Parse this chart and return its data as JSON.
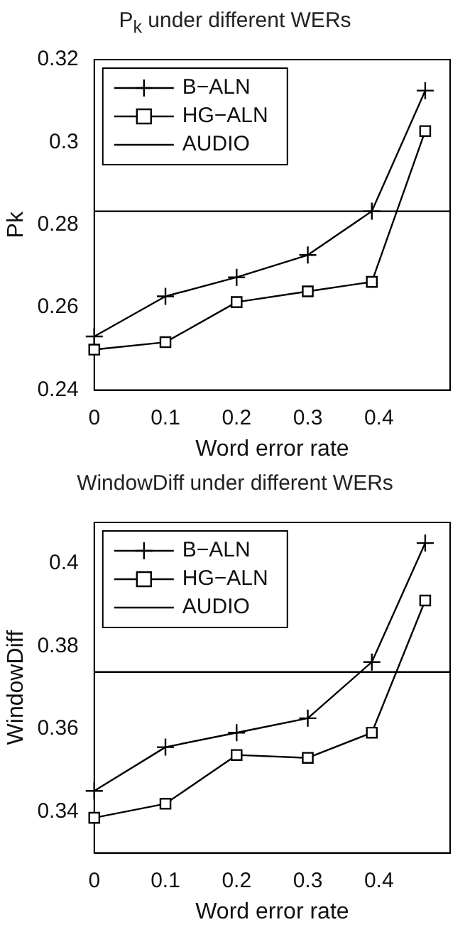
{
  "chart_data": [
    {
      "type": "line",
      "title": "P$_{k}$ under different WERs",
      "xlabel": "Word error rate",
      "ylabel": "Pk",
      "xlim": [
        0,
        0.5
      ],
      "xticks": [
        0,
        0.1,
        0.2,
        0.3,
        0.4
      ],
      "ylim": [
        0.24,
        0.32
      ],
      "yticks": [
        0.24,
        0.26,
        0.28,
        0.3,
        0.32
      ],
      "grid": false,
      "legend": "top left",
      "series": [
        {
          "name": "B−ALN",
          "color": "#000000",
          "marker": "cross",
          "x": [
            0,
            0.1,
            0.2,
            0.3,
            0.39,
            0.465
          ],
          "values": [
            0.253,
            0.2627,
            0.2673,
            0.2727,
            0.2833,
            0.3125
          ]
        },
        {
          "name": "HG−ALN",
          "color": "#000000",
          "marker": "square",
          "x": [
            0,
            0.1,
            0.2,
            0.3,
            0.39,
            0.465
          ],
          "values": [
            0.2498,
            0.2516,
            0.2613,
            0.2639,
            0.2662,
            0.3027
          ]
        },
        {
          "name": "AUDIO",
          "color": "#000000",
          "marker": "none",
          "x": [
            0,
            0.5
          ],
          "values": [
            0.2833,
            0.2833
          ]
        }
      ]
    },
    {
      "type": "line",
      "title": "WindowDiff under different WERs",
      "xlabel": "Word error rate",
      "ylabel": "WindowDiff",
      "xlim": [
        0,
        0.5
      ],
      "xticks": [
        0,
        0.1,
        0.2,
        0.3,
        0.4
      ],
      "ylim": [
        0.33,
        0.41
      ],
      "yticks": [
        0.34,
        0.36,
        0.38,
        0.4
      ],
      "grid": false,
      "legend": "top left",
      "series": [
        {
          "name": "B−ALN",
          "color": "#000000",
          "marker": "cross",
          "x": [
            0,
            0.1,
            0.2,
            0.3,
            0.39,
            0.465
          ],
          "values": [
            0.345,
            0.3556,
            0.3591,
            0.3626,
            0.3762,
            0.405
          ]
        },
        {
          "name": "HG−ALN",
          "color": "#000000",
          "marker": "square",
          "x": [
            0,
            0.1,
            0.2,
            0.3,
            0.39,
            0.465
          ],
          "values": [
            0.3385,
            0.3419,
            0.3537,
            0.353,
            0.3591,
            0.3911
          ]
        },
        {
          "name": "AUDIO",
          "color": "#000000",
          "marker": "none",
          "x": [
            0,
            0.5
          ],
          "values": [
            0.3738,
            0.3738
          ]
        }
      ]
    }
  ]
}
